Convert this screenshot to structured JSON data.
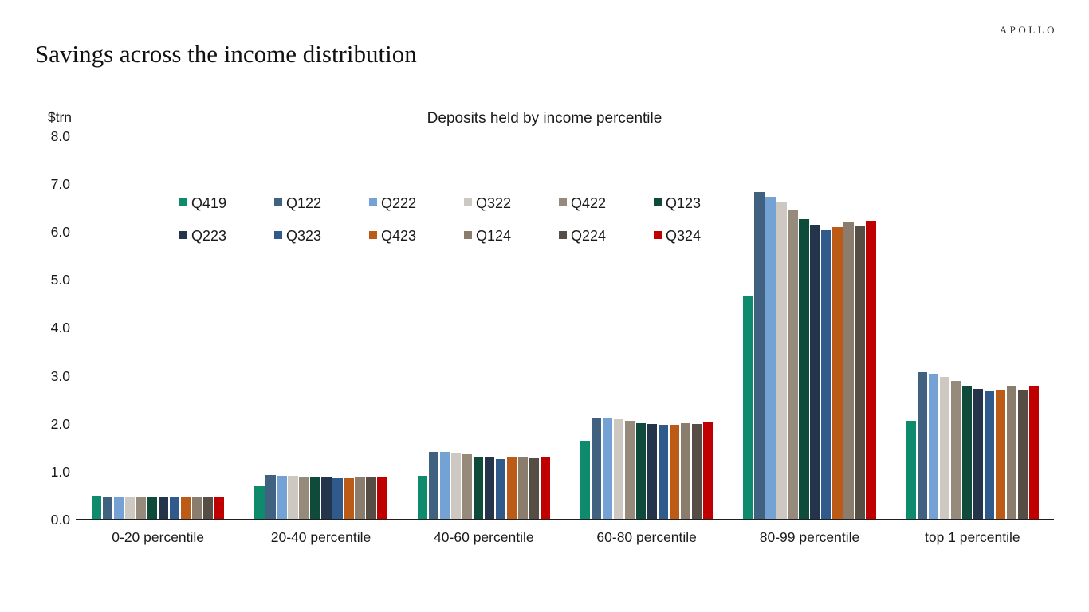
{
  "page": {
    "brand": "APOLLO",
    "title": "Savings across the income distribution"
  },
  "chart_data": {
    "type": "bar",
    "title": "Deposits held by income percentile",
    "unit_label": "$trn",
    "ylim": [
      0.0,
      8.0
    ],
    "ytick_labels": [
      "0.0",
      "1.0",
      "2.0",
      "3.0",
      "4.0",
      "5.0",
      "6.0",
      "7.0",
      "8.0"
    ],
    "grid": "off",
    "legend_position": "upper-left-inside, two rows",
    "categories": [
      "0-20 percentile",
      "20-40 percentile",
      "40-60 percentile",
      "60-80 percentile",
      "80-99 percentile",
      "top 1 percentile"
    ],
    "series": [
      {
        "name": "Q419",
        "color": "#0E8A6D",
        "values": [
          0.48,
          0.7,
          0.92,
          1.64,
          4.67,
          2.06
        ]
      },
      {
        "name": "Q122",
        "color": "#40617F",
        "values": [
          0.46,
          0.93,
          1.42,
          2.13,
          6.83,
          3.07
        ]
      },
      {
        "name": "Q222",
        "color": "#74A2D4",
        "values": [
          0.46,
          0.91,
          1.42,
          2.13,
          6.74,
          3.04
        ]
      },
      {
        "name": "Q322",
        "color": "#CDC9C2",
        "values": [
          0.46,
          0.92,
          1.4,
          2.09,
          6.63,
          2.97
        ]
      },
      {
        "name": "Q422",
        "color": "#968A7B",
        "values": [
          0.46,
          0.9,
          1.36,
          2.06,
          6.46,
          2.89
        ]
      },
      {
        "name": "Q123",
        "color": "#0E4B3B",
        "values": [
          0.46,
          0.88,
          1.32,
          2.01,
          6.26,
          2.79
        ]
      },
      {
        "name": "Q223",
        "color": "#24344A",
        "values": [
          0.46,
          0.88,
          1.3,
          1.99,
          6.15,
          2.72
        ]
      },
      {
        "name": "Q323",
        "color": "#30598C",
        "values": [
          0.46,
          0.86,
          1.27,
          1.98,
          6.05,
          2.67
        ]
      },
      {
        "name": "Q423",
        "color": "#BC5B15",
        "values": [
          0.46,
          0.86,
          1.29,
          1.98,
          6.1,
          2.71
        ]
      },
      {
        "name": "Q124",
        "color": "#8B7D6E",
        "values": [
          0.46,
          0.88,
          1.31,
          2.01,
          6.22,
          2.77
        ]
      },
      {
        "name": "Q224",
        "color": "#564E44",
        "values": [
          0.46,
          0.88,
          1.28,
          2.0,
          6.13,
          2.71
        ]
      },
      {
        "name": "Q324",
        "color": "#C00000",
        "values": [
          0.46,
          0.88,
          1.31,
          2.02,
          6.23,
          2.77
        ]
      }
    ]
  }
}
